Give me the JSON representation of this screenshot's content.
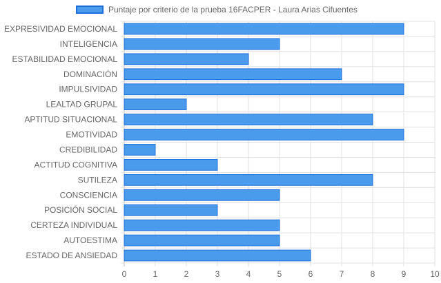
{
  "chart_data": {
    "type": "bar",
    "orientation": "horizontal",
    "legend": "top-center",
    "grid": true,
    "series": [
      {
        "name": "Puntaje por criterio de la prueba 16FACPER - Laura Arias Cifuentes",
        "color": "#4a9bec",
        "border_color": "#1e6fd9",
        "values": [
          9,
          5,
          4,
          7,
          9,
          2,
          8,
          9,
          1,
          3,
          8,
          5,
          3,
          5,
          5,
          6
        ]
      }
    ],
    "categories": [
      "EXPRESIVIDAD EMOCIONAL",
      "INTELIGENCIA",
      "ESTABILIDAD EMOCIONAL",
      "DOMINACIÓN",
      "IMPULSIVIDAD",
      "LEALTAD GRUPAL",
      "APTITUD SITUACIONAL",
      "EMOTIVIDAD",
      "CREDIBILIDAD",
      "ACTITUD COGNITIVA",
      "SUTILEZA",
      "CONSCIENCIA",
      "POSICIÓN SOCIAL",
      "CERTEZA INDIVIDUAL",
      "AUTOESTIMA",
      "ESTADO DE ANSIEDAD"
    ],
    "xlim": [
      0,
      10
    ],
    "xticks": [
      "0",
      "1",
      "2",
      "3",
      "4",
      "5",
      "6",
      "7",
      "8",
      "9",
      "10"
    ]
  }
}
